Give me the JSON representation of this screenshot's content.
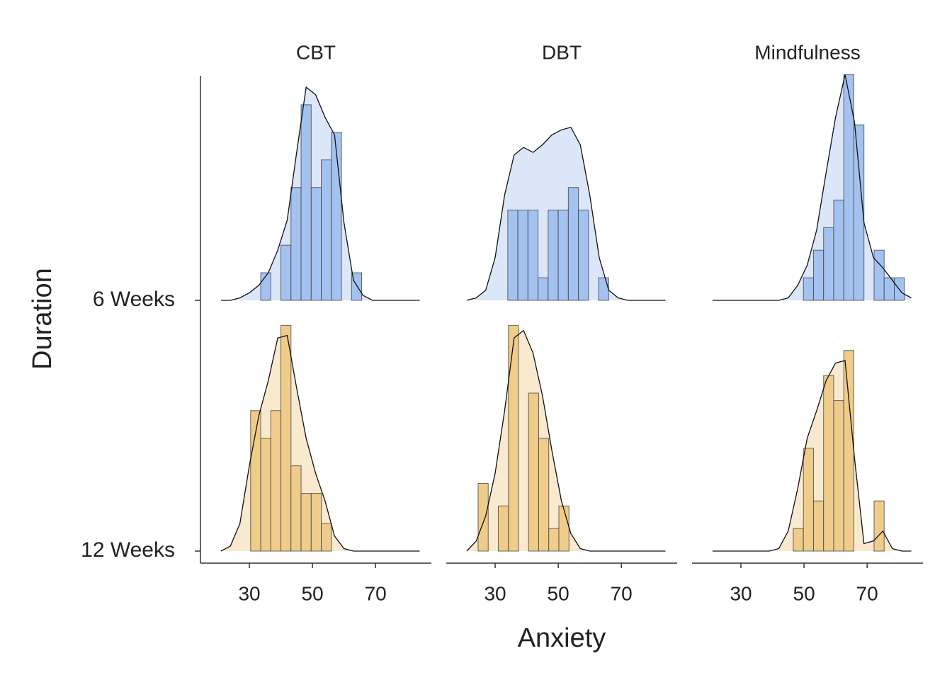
{
  "chart_data": {
    "type": "ridgeline",
    "x_label": "Anxiety",
    "y_label": "Duration",
    "categories": [
      "6 Weeks",
      "12 Weeks"
    ],
    "colors": [
      {
        "hist": "#a4c2f0",
        "density": "#dbe6f8"
      },
      {
        "hist": "#f0cc8a",
        "density": "#f8e9cf"
      }
    ],
    "xlim": [
      14.5,
      87.7
    ],
    "xticks": [
      30,
      50,
      70
    ],
    "density_x": [
      21,
      24,
      27,
      30,
      33,
      36,
      39,
      42,
      45,
      48,
      51,
      54,
      57,
      60,
      63,
      66,
      69,
      72,
      75,
      78,
      81,
      84
    ],
    "panels": [
      {
        "title": "CBT",
        "ridges": [
          {
            "bins": [
              33.6,
              36.8,
              40.0,
              43.2,
              46.4,
              49.6,
              52.8,
              56.0,
              59.2,
              62.4,
              65.6
            ],
            "heights": [
              0.11,
              0,
              0.22,
              0.45,
              0.78,
              0.45,
              0.56,
              0.67,
              0,
              0.11
            ],
            "density": [
              0,
              0,
              0.01,
              0.03,
              0.06,
              0.11,
              0.2,
              0.32,
              0.59,
              0.85,
              0.82,
              0.73,
              0.66,
              0.31,
              0.08,
              0.02,
              0,
              0,
              0,
              0,
              0,
              0
            ]
          },
          {
            "bins": [
              30.4,
              33.6,
              36.8,
              40.0,
              43.2,
              46.4,
              49.6,
              52.8,
              56.0
            ],
            "heights": [
              0.56,
              0.45,
              0.56,
              0.9,
              0.34,
              0.23,
              0.23,
              0.11
            ],
            "density": [
              0,
              0.02,
              0.11,
              0.34,
              0.54,
              0.68,
              0.85,
              0.86,
              0.65,
              0.45,
              0.31,
              0.2,
              0.06,
              0.01,
              0,
              0,
              0,
              0,
              0,
              0,
              0,
              0
            ]
          }
        ]
      },
      {
        "title": "DBT",
        "ridges": [
          {
            "bins": [
              34.0,
              37.2,
              40.4,
              43.6,
              46.8,
              50.0,
              53.2,
              56.4,
              59.6,
              62.8,
              66.0
            ],
            "heights": [
              0.36,
              0.36,
              0.36,
              0.09,
              0.36,
              0.36,
              0.45,
              0.36,
              0,
              0.09
            ],
            "density": [
              0,
              0.01,
              0.04,
              0.17,
              0.42,
              0.58,
              0.61,
              0.59,
              0.62,
              0.66,
              0.68,
              0.69,
              0.62,
              0.42,
              0.17,
              0.04,
              0.01,
              0,
              0,
              0,
              0,
              0
            ]
          },
          {
            "bins": [
              24.6,
              27.8,
              31.0,
              34.2,
              37.4,
              40.6,
              43.8,
              47.0,
              50.2,
              53.4
            ],
            "heights": [
              0.27,
              0,
              0.18,
              0.9,
              0,
              0.63,
              0.45,
              0.09,
              0.18
            ],
            "density": [
              0,
              0.04,
              0.14,
              0.31,
              0.56,
              0.85,
              0.88,
              0.79,
              0.62,
              0.4,
              0.2,
              0.07,
              0.01,
              0,
              0,
              0,
              0,
              0,
              0,
              0,
              0,
              0
            ]
          }
        ]
      },
      {
        "title": "Mindfulness",
        "ridges": [
          {
            "bins": [
              49.8,
              53.0,
              56.2,
              59.4,
              62.6,
              65.8,
              69.0,
              72.2,
              75.4,
              78.6,
              81.8
            ],
            "heights": [
              0.09,
              0.2,
              0.29,
              0.4,
              0.9,
              0.7,
              0,
              0.2,
              0.09,
              0.09
            ],
            "density": [
              0,
              0,
              0,
              0,
              0,
              0,
              0,
              0,
              0.01,
              0.06,
              0.14,
              0.28,
              0.51,
              0.73,
              0.9,
              0.71,
              0.31,
              0.17,
              0.13,
              0.08,
              0.03,
              0.01
            ]
          },
          {
            "bins": [
              46.6,
              49.8,
              53.0,
              56.2,
              59.4,
              62.6,
              65.8,
              69.0,
              72.2,
              75.4
            ],
            "heights": [
              0.09,
              0.41,
              0.2,
              0.7,
              0.6,
              0.8,
              0,
              0,
              0.2
            ],
            "density": [
              0,
              0,
              0,
              0,
              0,
              0,
              0,
              0.01,
              0.08,
              0.25,
              0.45,
              0.56,
              0.68,
              0.75,
              0.76,
              0.37,
              0.03,
              0.04,
              0.08,
              0.01,
              0,
              0
            ]
          }
        ]
      }
    ]
  }
}
